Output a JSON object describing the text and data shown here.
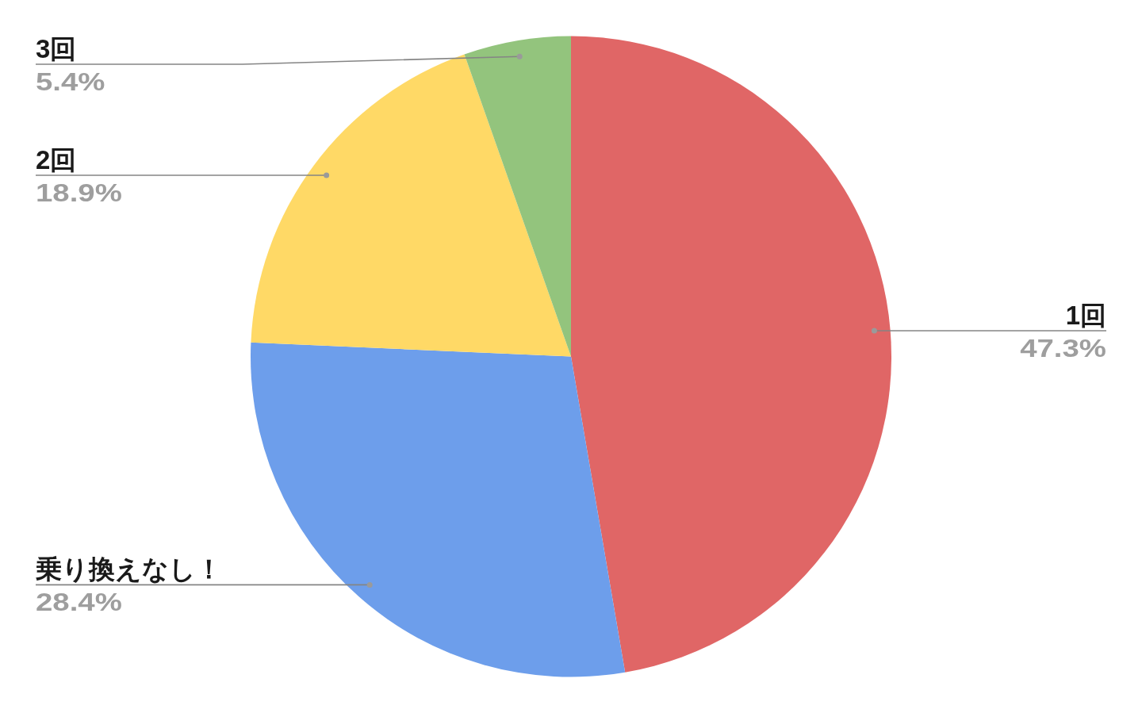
{
  "chart_data": {
    "type": "pie",
    "categories": [
      "1回",
      "乗り換えなし！",
      "2回",
      "3回"
    ],
    "values": [
      47.3,
      28.4,
      18.9,
      5.4
    ],
    "colors": [
      "#e06666",
      "#6d9eeb",
      "#ffd966",
      "#93c47d"
    ],
    "value_labels": [
      "47.3%",
      "28.4%",
      "18.9%",
      "5.4%"
    ]
  }
}
